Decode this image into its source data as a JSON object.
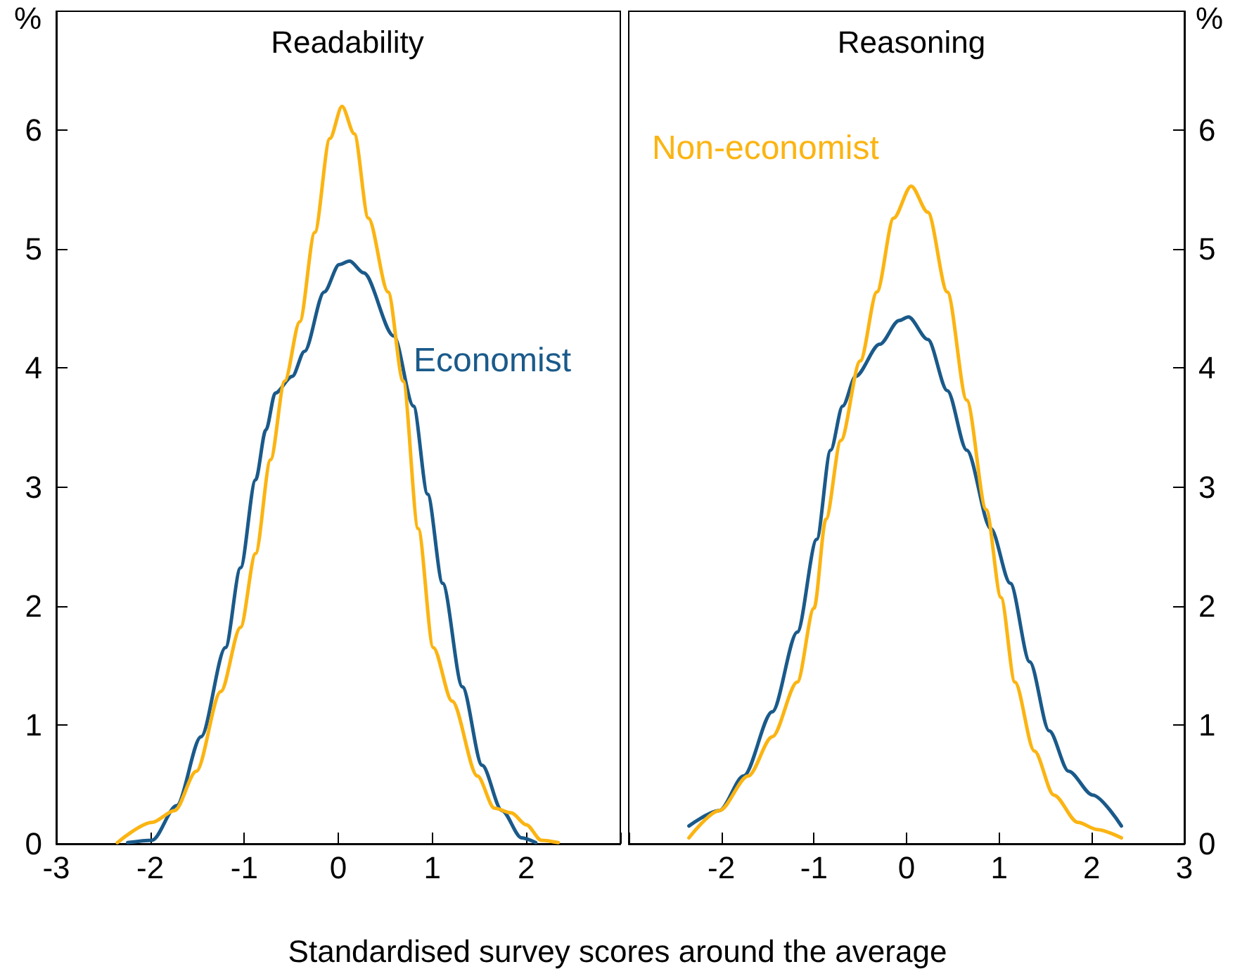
{
  "chart_data": [
    {
      "type": "line",
      "title": "Readability",
      "ylabel": "%",
      "xlabel": "Standardised survey scores around the average",
      "xlim": [
        -3,
        3
      ],
      "xticks": [
        -3,
        -2,
        -1,
        0,
        1,
        2,
        {
          "value": 3,
          "label": null
        }
      ],
      "ylim": [
        0,
        7
      ],
      "yticks": [
        0,
        1,
        2,
        3,
        4,
        5,
        6
      ],
      "series": [
        {
          "name": "Economist",
          "color": "#1a5a8a",
          "x": [
            -2.24,
            -1.98,
            -1.72,
            -1.46,
            -1.2,
            -1.04,
            -0.88,
            -0.77,
            -0.67,
            -0.49,
            -0.36,
            -0.15,
            0.01,
            0.12,
            0.27,
            0.59,
            0.8,
            0.95,
            1.11,
            1.32,
            1.53,
            1.74,
            1.95,
            2.1
          ],
          "values": [
            0.01,
            0.03,
            0.32,
            0.9,
            1.65,
            2.32,
            3.06,
            3.48,
            3.79,
            3.93,
            4.14,
            4.64,
            4.87,
            4.9,
            4.8,
            4.27,
            3.68,
            2.94,
            2.19,
            1.32,
            0.66,
            0.28,
            0.05,
            0.01
          ]
        },
        {
          "color": "#fbb412",
          "x": [
            -2.35,
            -1.98,
            -1.74,
            -1.51,
            -1.25,
            -1.04,
            -0.88,
            -0.72,
            -0.57,
            -0.41,
            -0.25,
            -0.09,
            0.04,
            0.17,
            0.32,
            0.53,
            0.69,
            0.85,
            1.01,
            1.21,
            1.48,
            1.66,
            1.84,
            2.0,
            2.16,
            2.34
          ],
          "values": [
            0.01,
            0.18,
            0.28,
            0.61,
            1.28,
            1.82,
            2.44,
            3.23,
            3.89,
            4.39,
            5.14,
            5.93,
            6.2,
            5.97,
            5.26,
            4.64,
            3.89,
            2.65,
            1.65,
            1.2,
            0.57,
            0.3,
            0.26,
            0.16,
            0.03,
            0.01
          ]
        }
      ]
    },
    {
      "type": "line",
      "title": "Reasoning",
      "ylabel": "%",
      "xlim": [
        -3,
        3
      ],
      "xticks": [
        {
          "value": -3,
          "label": null
        },
        -2,
        -1,
        0,
        1,
        2,
        3
      ],
      "ylim": [
        0,
        7
      ],
      "yticks": [
        0,
        1,
        2,
        3,
        4,
        5,
        6
      ],
      "series": [
        {
          "color": "#1a5a8a",
          "x": [
            -2.35,
            -2.02,
            -1.76,
            -1.45,
            -1.18,
            -0.97,
            -0.82,
            -0.69,
            -0.55,
            -0.29,
            -0.08,
            0.02,
            0.23,
            0.44,
            0.65,
            0.91,
            1.12,
            1.33,
            1.54,
            1.75,
            2.01,
            2.32
          ],
          "values": [
            0.15,
            0.28,
            0.57,
            1.11,
            1.78,
            2.56,
            3.31,
            3.68,
            3.93,
            4.2,
            4.4,
            4.43,
            4.24,
            3.81,
            3.31,
            2.65,
            2.19,
            1.53,
            0.95,
            0.61,
            0.41,
            0.15
          ]
        },
        {
          "name": "Non-economist",
          "color": "#fbb412",
          "x": [
            -2.35,
            -2.02,
            -1.71,
            -1.45,
            -1.18,
            -1.0,
            -0.87,
            -0.71,
            -0.5,
            -0.32,
            -0.14,
            0.05,
            0.23,
            0.44,
            0.65,
            0.86,
            1.02,
            1.17,
            1.38,
            1.59,
            1.85,
            2.06,
            2.32
          ],
          "values": [
            0.05,
            0.28,
            0.57,
            0.9,
            1.36,
            1.98,
            2.73,
            3.39,
            4.06,
            4.64,
            5.26,
            5.53,
            5.31,
            4.64,
            3.73,
            2.81,
            2.07,
            1.36,
            0.78,
            0.41,
            0.18,
            0.12,
            0.05
          ]
        }
      ]
    }
  ]
}
